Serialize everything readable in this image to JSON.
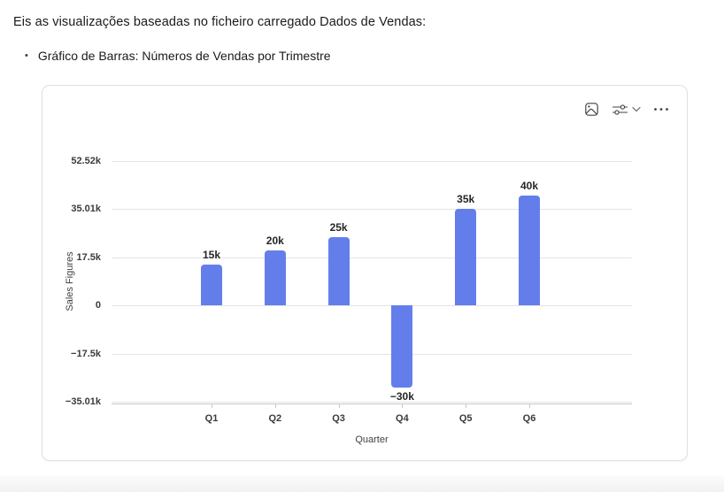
{
  "intro": {
    "text": "Eis as visualizações baseadas no ficheiro carregado Dados de Vendas:"
  },
  "bullet": {
    "marker": "•",
    "text": "Gráfico de Barras: Números de Vendas por Trimestre"
  },
  "card": {
    "toolbar": {
      "icons": [
        "image-icon",
        "chart-options-icon",
        "chevron-down-icon",
        "ellipsis-icon"
      ]
    }
  },
  "chart_data": {
    "type": "bar",
    "title": "",
    "categories": [
      "Q1",
      "Q2",
      "Q3",
      "Q4",
      "Q5",
      "Q6"
    ],
    "values": [
      15000,
      20000,
      25000,
      -30000,
      35000,
      40000
    ],
    "value_labels": [
      "15k",
      "20k",
      "25k",
      "−30k",
      "35k",
      "40k"
    ],
    "xlabel": "Quarter",
    "ylabel": "Sales Figures",
    "ylim": [
      -35010,
      52515
    ],
    "yticks": [
      {
        "value": 52515,
        "label": "52.52k"
      },
      {
        "value": 35010,
        "label": "35.01k"
      },
      {
        "value": 17505,
        "label": "17.5k"
      },
      {
        "value": 0,
        "label": "0"
      },
      {
        "value": -17505,
        "label": "−17.5k"
      },
      {
        "value": -35010,
        "label": "−35.01k"
      }
    ],
    "grid": true,
    "legend": false,
    "bar_color": "#637EEB"
  },
  "colors": {
    "bar": "#637EEB",
    "gridline": "#e4e4e4",
    "axis": "#c9c9c9",
    "icon": "#424242"
  }
}
